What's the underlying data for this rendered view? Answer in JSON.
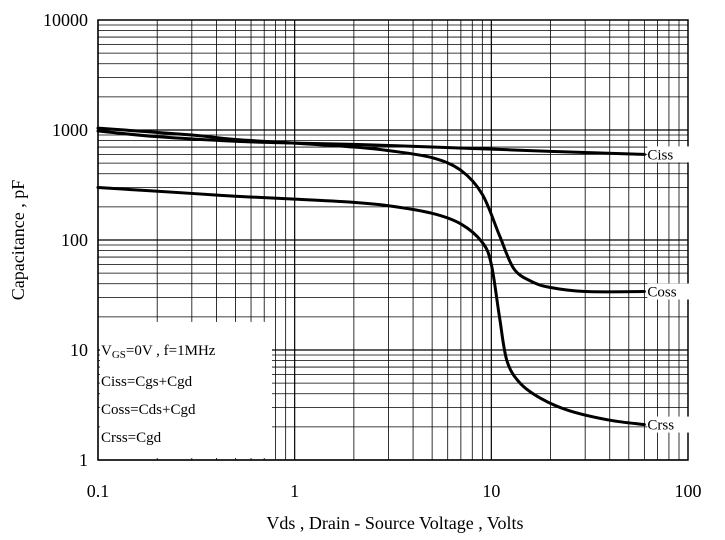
{
  "chart_data": {
    "type": "line",
    "xscale": "log",
    "yscale": "log",
    "xlim": [
      0.1,
      100
    ],
    "ylim": [
      1,
      10000
    ],
    "grid": true,
    "xlabel": "Vds , Drain - Source Voltage , Volts",
    "ylabel": "Capacitance , pF",
    "xticks": [
      0.1,
      1,
      10,
      100
    ],
    "xtick_labels": [
      "0.1",
      "1",
      "10",
      "100"
    ],
    "yticks": [
      1,
      10,
      100,
      1000,
      10000
    ],
    "ytick_labels": [
      "1",
      "10",
      "100",
      "1000",
      "10000"
    ],
    "series": [
      {
        "name": "Ciss",
        "x": [
          0.1,
          0.2,
          0.5,
          1,
          2,
          5,
          10,
          20,
          60
        ],
        "y": [
          980,
          870,
          790,
          760,
          740,
          700,
          670,
          640,
          600
        ]
      },
      {
        "name": "Coss",
        "x": [
          0.1,
          0.3,
          0.5,
          1,
          2,
          3,
          5,
          7,
          9,
          11,
          13,
          16,
          20,
          30,
          60
        ],
        "y": [
          1040,
          900,
          820,
          760,
          700,
          650,
          560,
          430,
          260,
          110,
          55,
          42,
          37,
          34,
          34
        ]
      },
      {
        "name": "Crss",
        "x": [
          0.1,
          0.3,
          0.5,
          1,
          2,
          3,
          5,
          7,
          9,
          10,
          11,
          12,
          14,
          18,
          25,
          40,
          60
        ],
        "y": [
          300,
          265,
          250,
          235,
          220,
          205,
          175,
          140,
          95,
          60,
          20,
          8,
          5,
          3.6,
          2.8,
          2.3,
          2.1
        ]
      }
    ],
    "annotations": [
      {
        "main": "V",
        "sub": "GS",
        "rest": "=0V , f=1MHz"
      },
      {
        "text": "Ciss=Cgs+Cgd"
      },
      {
        "text": "Coss=Cds+Cgd"
      },
      {
        "text": "Crss=Cgd"
      }
    ]
  }
}
